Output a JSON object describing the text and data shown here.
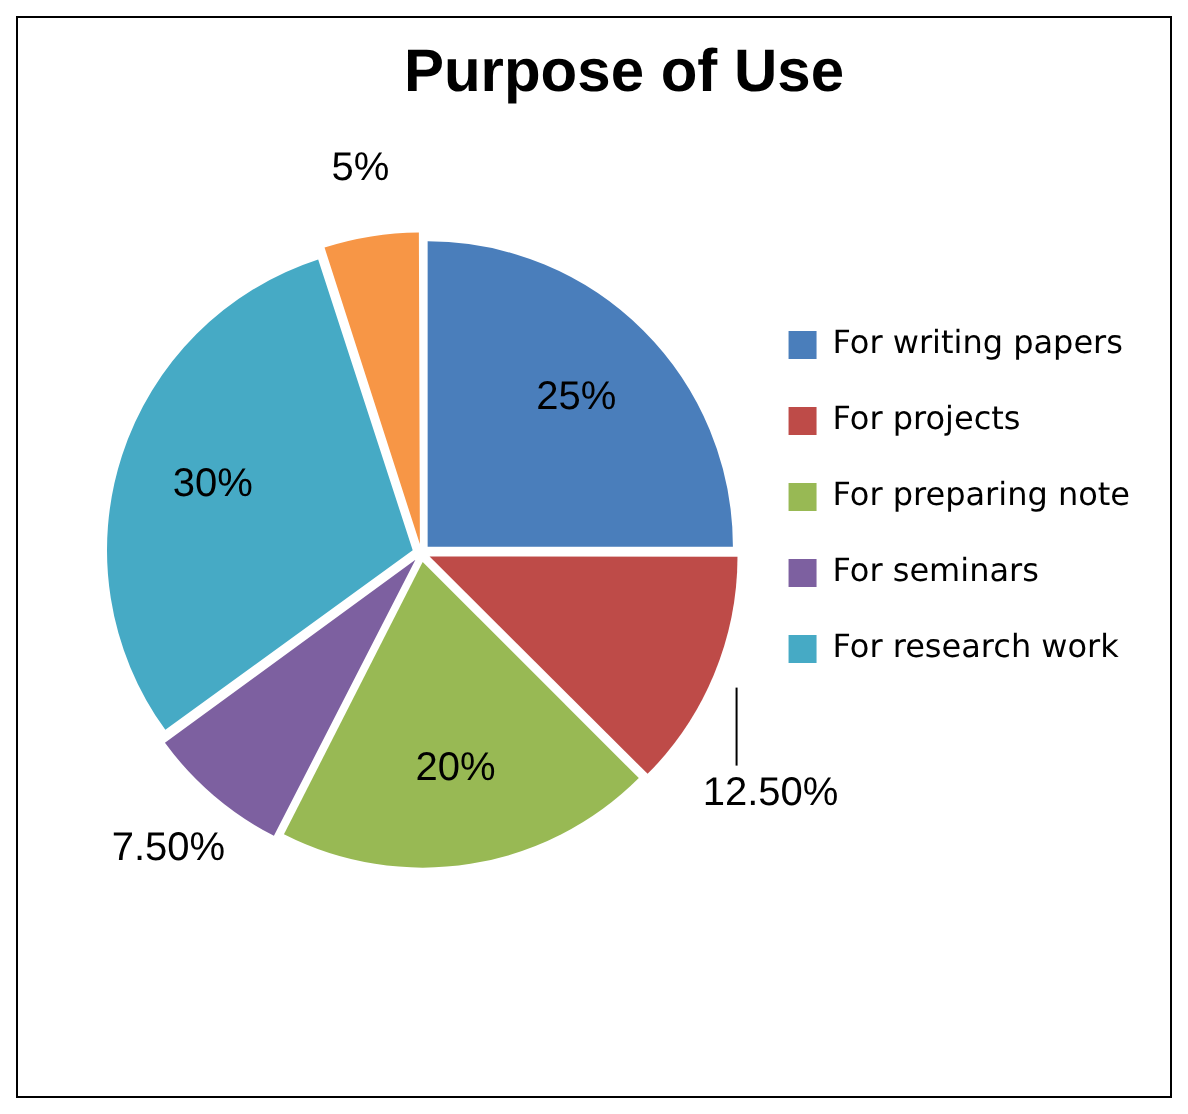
{
  "chart_data": {
    "type": "pie",
    "title": "Purpose of Use",
    "categories": [
      "For writing papers",
      "For projects",
      "For preparing note",
      "For seminars",
      "For research work",
      null
    ],
    "values": [
      25,
      12.5,
      20,
      7.5,
      30,
      5
    ],
    "value_labels": [
      "25%",
      "12.50%",
      "20%",
      "7.50%",
      "30%",
      "5%"
    ],
    "colors": [
      "#4a7ebb",
      "#be4b48",
      "#98b954",
      "#7d60a0",
      "#46aac5",
      "#f79646"
    ],
    "legend": "right"
  }
}
